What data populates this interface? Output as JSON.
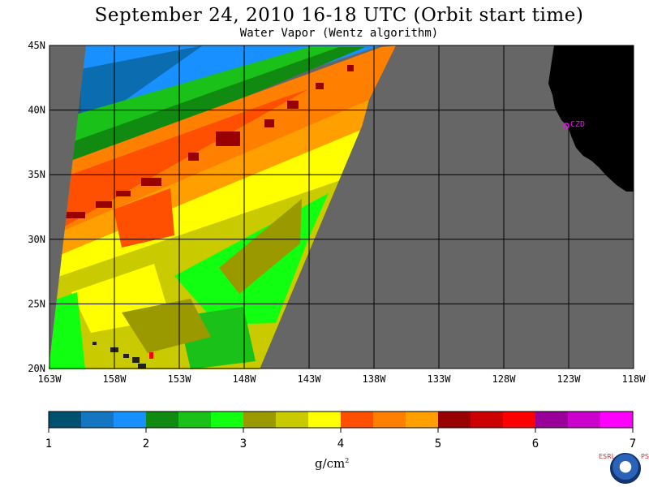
{
  "header": {
    "title": "September 24, 2010  16-18 UTC  (Orbit start time)",
    "subtitle": "Water Vapor (Wentz algorithm)"
  },
  "map": {
    "lat_labels": [
      "45N",
      "40N",
      "35N",
      "30N",
      "25N",
      "20N"
    ],
    "lon_labels": [
      "163W",
      "158W",
      "153W",
      "148W",
      "143W",
      "138W",
      "133W",
      "128W",
      "123W",
      "118W"
    ],
    "station_label": "CZD",
    "colors": {
      "no_data": "#666666",
      "land": "#000000",
      "station": "#ff00ff"
    }
  },
  "colorbar": {
    "ticks": [
      "1",
      "2",
      "3",
      "4",
      "5",
      "6",
      "7"
    ],
    "unit_main": "g/cm",
    "unit_sup": "2",
    "colors": [
      "#005070",
      "#1475c0",
      "#1990ff",
      "#118a11",
      "#19c119",
      "#11ff11",
      "#9a9a00",
      "#caca00",
      "#ffff00",
      "#ff4f00",
      "#ff7f00",
      "#ffa000",
      "#990000",
      "#cc0000",
      "#ff0000",
      "#990099",
      "#cc00cc",
      "#ff00ff"
    ]
  },
  "footer": {
    "logo_left": "ESRL",
    "logo_right": "PSD",
    "logo_name": "NOAA"
  }
}
